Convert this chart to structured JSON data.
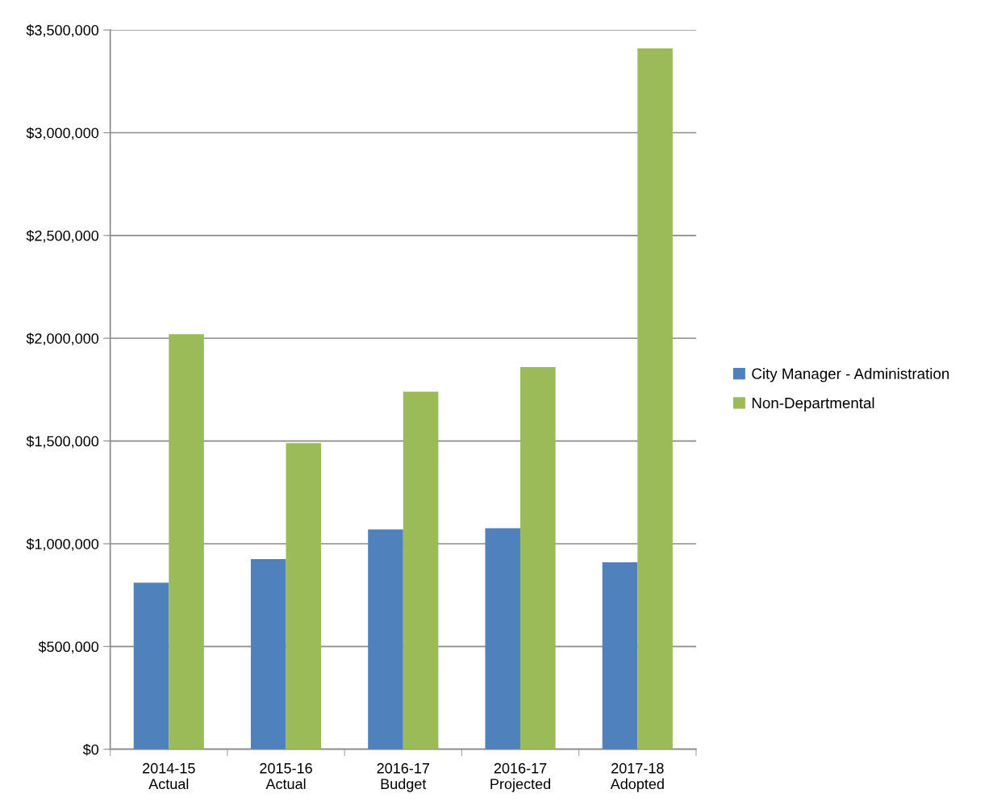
{
  "chart_data": {
    "type": "bar",
    "categories": [
      "2014-15\nActual",
      "2015-16\nActual",
      "2016-17\nBudget",
      "2016-17\nProjected",
      "2017-18\nAdopted"
    ],
    "series": [
      {
        "name": "City Manager - Administration",
        "color": "#4f81bd",
        "values": [
          810000,
          925000,
          1070000,
          1075000,
          910000
        ]
      },
      {
        "name": "Non-Departmental",
        "color": "#9bbb59",
        "values": [
          2020000,
          1490000,
          1740000,
          1860000,
          3410000
        ]
      }
    ],
    "ylim": [
      0,
      3500000
    ],
    "yticks": [
      {
        "value": 0,
        "label": "$0"
      },
      {
        "value": 500000,
        "label": "$500,000"
      },
      {
        "value": 1000000,
        "label": "$1,000,000"
      },
      {
        "value": 1500000,
        "label": "$1,500,000"
      },
      {
        "value": 2000000,
        "label": "$2,000,000"
      },
      {
        "value": 2500000,
        "label": "$2,500,000"
      },
      {
        "value": 3000000,
        "label": "$3,000,000"
      },
      {
        "value": 3500000,
        "label": "$3,500,000"
      }
    ],
    "grid": "y",
    "legend": "right"
  }
}
